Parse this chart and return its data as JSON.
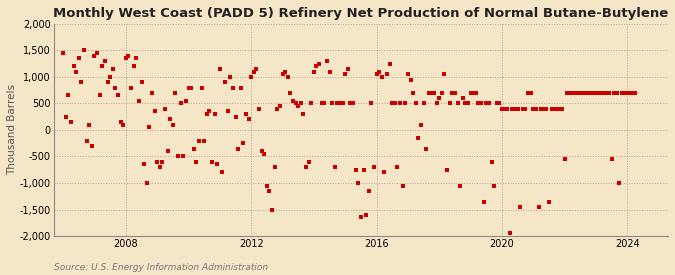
{
  "title": "Monthly West Coast (PADD 5) Refinery Net Production of Normal Butane-Butylene",
  "ylabel": "Thousand Barrels",
  "source": "Source: U.S. Energy Information Administration",
  "background_color": "#f5e6c8",
  "plot_bg_color": "#f5e6c8",
  "dot_color": "#cc0000",
  "dot_size": 7,
  "ylim": [
    -2000,
    2000
  ],
  "yticks": [
    -2000,
    -1500,
    -1000,
    -500,
    0,
    500,
    1000,
    1500,
    2000
  ],
  "xticks": [
    2008,
    2012,
    2016,
    2020,
    2024
  ],
  "xlim_start": 2005.7,
  "xlim_end": 2025.3,
  "title_fontsize": 9.5,
  "ylabel_fontsize": 7.5,
  "tick_fontsize": 7,
  "source_fontsize": 6.5,
  "dates": [
    2006.0,
    2006.083,
    2006.167,
    2006.25,
    2006.333,
    2006.417,
    2006.5,
    2006.583,
    2006.667,
    2006.75,
    2006.833,
    2006.917,
    2007.0,
    2007.083,
    2007.167,
    2007.25,
    2007.333,
    2007.417,
    2007.5,
    2007.583,
    2007.667,
    2007.75,
    2007.833,
    2007.917,
    2008.0,
    2008.083,
    2008.167,
    2008.25,
    2008.333,
    2008.417,
    2008.5,
    2008.583,
    2008.667,
    2008.75,
    2008.833,
    2008.917,
    2009.0,
    2009.083,
    2009.167,
    2009.25,
    2009.333,
    2009.417,
    2009.5,
    2009.583,
    2009.667,
    2009.75,
    2009.833,
    2009.917,
    2010.0,
    2010.083,
    2010.167,
    2010.25,
    2010.333,
    2010.417,
    2010.5,
    2010.583,
    2010.667,
    2010.75,
    2010.833,
    2010.917,
    2011.0,
    2011.083,
    2011.167,
    2011.25,
    2011.333,
    2011.417,
    2011.5,
    2011.583,
    2011.667,
    2011.75,
    2011.833,
    2011.917,
    2012.0,
    2012.083,
    2012.167,
    2012.25,
    2012.333,
    2012.417,
    2012.5,
    2012.583,
    2012.667,
    2012.75,
    2012.833,
    2012.917,
    2013.0,
    2013.083,
    2013.167,
    2013.25,
    2013.333,
    2013.417,
    2013.5,
    2013.583,
    2013.667,
    2013.75,
    2013.833,
    2013.917,
    2014.0,
    2014.083,
    2014.167,
    2014.25,
    2014.333,
    2014.417,
    2014.5,
    2014.583,
    2014.667,
    2014.75,
    2014.833,
    2014.917,
    2015.0,
    2015.083,
    2015.167,
    2015.25,
    2015.333,
    2015.417,
    2015.5,
    2015.583,
    2015.667,
    2015.75,
    2015.833,
    2015.917,
    2016.0,
    2016.083,
    2016.167,
    2016.25,
    2016.333,
    2016.417,
    2016.5,
    2016.583,
    2016.667,
    2016.75,
    2016.833,
    2016.917,
    2017.0,
    2017.083,
    2017.167,
    2017.25,
    2017.333,
    2017.417,
    2017.5,
    2017.583,
    2017.667,
    2017.75,
    2017.833,
    2017.917,
    2018.0,
    2018.083,
    2018.167,
    2018.25,
    2018.333,
    2018.417,
    2018.5,
    2018.583,
    2018.667,
    2018.75,
    2018.833,
    2018.917,
    2019.0,
    2019.083,
    2019.167,
    2019.25,
    2019.333,
    2019.417,
    2019.5,
    2019.583,
    2019.667,
    2019.75,
    2019.833,
    2019.917,
    2020.0,
    2020.083,
    2020.167,
    2020.25,
    2020.333,
    2020.417,
    2020.5,
    2020.583,
    2020.667,
    2020.75,
    2020.833,
    2020.917,
    2021.0,
    2021.083,
    2021.167,
    2021.25,
    2021.333,
    2021.417,
    2021.5,
    2021.583,
    2021.667,
    2021.75,
    2021.833,
    2021.917,
    2022.0,
    2022.083,
    2022.167,
    2022.25,
    2022.333,
    2022.417,
    2022.5,
    2022.583,
    2022.667,
    2022.75,
    2022.833,
    2022.917,
    2023.0,
    2023.083,
    2023.167,
    2023.25,
    2023.333,
    2023.417,
    2023.5,
    2023.583,
    2023.667,
    2023.75,
    2023.833,
    2023.917,
    2024.0,
    2024.083,
    2024.167,
    2024.25
  ],
  "values": [
    1450,
    250,
    650,
    150,
    1200,
    1100,
    1350,
    900,
    1500,
    -200,
    100,
    -300,
    1400,
    1450,
    650,
    1200,
    1300,
    900,
    1000,
    1150,
    800,
    650,
    150,
    100,
    1350,
    1400,
    800,
    1200,
    1350,
    550,
    900,
    -650,
    -1000,
    50,
    700,
    350,
    -600,
    -700,
    -600,
    400,
    -400,
    200,
    100,
    700,
    -500,
    500,
    -500,
    550,
    800,
    800,
    -350,
    -600,
    -200,
    800,
    -200,
    300,
    350,
    -600,
    300,
    -650,
    1150,
    -800,
    900,
    350,
    1000,
    800,
    250,
    -350,
    800,
    -250,
    300,
    200,
    1000,
    1100,
    1150,
    400,
    -400,
    -450,
    -1050,
    -1150,
    -1500,
    -700,
    400,
    450,
    1050,
    1100,
    1000,
    700,
    550,
    500,
    450,
    500,
    300,
    -700,
    -600,
    500,
    1100,
    1200,
    1250,
    500,
    500,
    1300,
    1100,
    500,
    -700,
    500,
    500,
    500,
    1050,
    1150,
    500,
    500,
    -750,
    -1000,
    -1650,
    -750,
    -1600,
    -1150,
    500,
    -700,
    1050,
    1100,
    1000,
    -800,
    1050,
    1250,
    500,
    500,
    -700,
    500,
    -1050,
    500,
    1050,
    950,
    700,
    500,
    -150,
    100,
    500,
    -350,
    700,
    700,
    700,
    500,
    600,
    700,
    1050,
    -750,
    500,
    700,
    700,
    500,
    -1050,
    600,
    500,
    500,
    700,
    700,
    700,
    500,
    500,
    -1350,
    500,
    500,
    -600,
    -1050,
    500,
    500,
    400,
    400,
    400,
    -1950,
    400,
    400,
    400,
    -1450,
    400,
    400,
    700,
    700,
    400,
    400,
    -1450,
    400,
    400,
    400,
    -1350,
    400,
    400,
    400,
    400,
    400,
    -550,
    700,
    700,
    700,
    700,
    700,
    700,
    700,
    700,
    700,
    700,
    700,
    700,
    700,
    700,
    700,
    700,
    700,
    -550,
    700,
    700,
    -1000,
    700,
    700,
    700,
    700,
    700,
    700
  ]
}
